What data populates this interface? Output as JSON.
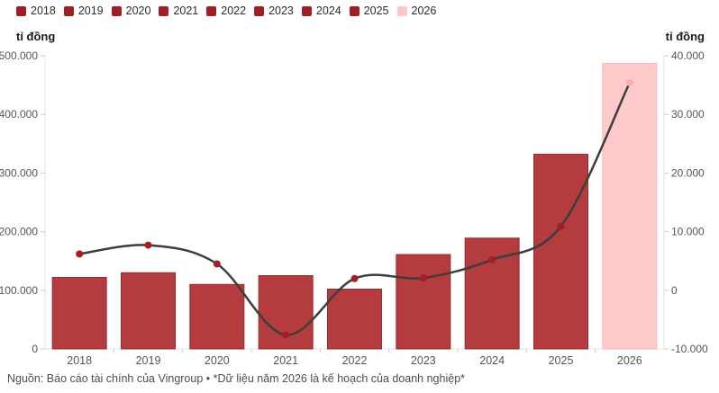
{
  "footer": "Nguồn: Báo cáo tài chính của Vingroup • *Dữ liệu năm 2026 là kế hoạch của doanh nghiệp*",
  "legend": {
    "items": [
      {
        "label": "2018",
        "color": "#a01f23"
      },
      {
        "label": "2019",
        "color": "#a01f23"
      },
      {
        "label": "2020",
        "color": "#a01f23"
      },
      {
        "label": "2021",
        "color": "#a01f23"
      },
      {
        "label": "2022",
        "color": "#a01f23"
      },
      {
        "label": "2023",
        "color": "#a01f23"
      },
      {
        "label": "2024",
        "color": "#a01f23"
      },
      {
        "label": "2025",
        "color": "#a01f23"
      },
      {
        "label": "2026",
        "color": "#fbc7c8"
      }
    ]
  },
  "chart_data": {
    "type": "bar",
    "categories": [
      "2018",
      "2019",
      "2020",
      "2021",
      "2022",
      "2023",
      "2024",
      "2025",
      "2026"
    ],
    "series": [
      {
        "name": "bars",
        "type": "bar",
        "axis": "left",
        "values": [
          122000,
          130000,
          110000,
          125000,
          102000,
          161000,
          189000,
          332000,
          487000
        ],
        "bar_color": "#b43c3f",
        "bar_border_color": "#9a2a2e",
        "last_bar_color": "#fdc9c9",
        "last_bar_border_color": "#f6baba"
      },
      {
        "name": "line",
        "type": "line",
        "axis": "right",
        "values": [
          6200,
          7700,
          4500,
          -7600,
          2000,
          2100,
          5200,
          10900,
          35400
        ],
        "line_color": "#3d3d3d",
        "point_color": "#a51e23",
        "last_point_color": "#f8b0b3"
      }
    ],
    "left_axis": {
      "label": "tỉ đồng",
      "min": 0,
      "max": 500000,
      "tick_values": [
        0,
        100000,
        200000,
        300000,
        400000,
        500000
      ],
      "tick_labels": [
        "0",
        "100.000",
        "200.000",
        "300.000",
        "400.000",
        "500.000"
      ]
    },
    "right_axis": {
      "label": "tỉ đồng",
      "min": -10000,
      "max": 40000,
      "tick_values": [
        -10000,
        0,
        10000,
        20000,
        30000,
        40000
      ],
      "tick_labels": [
        "-10.000",
        "0",
        "10.000",
        "20.000",
        "30.000",
        "40.000"
      ]
    },
    "grid": false,
    "legend_position": "top-left",
    "axis_line_color": "#e2e2e2",
    "tick_mark_color": "#cccccc",
    "tick_label_color": "#555555",
    "x_label_color": "#555555"
  }
}
